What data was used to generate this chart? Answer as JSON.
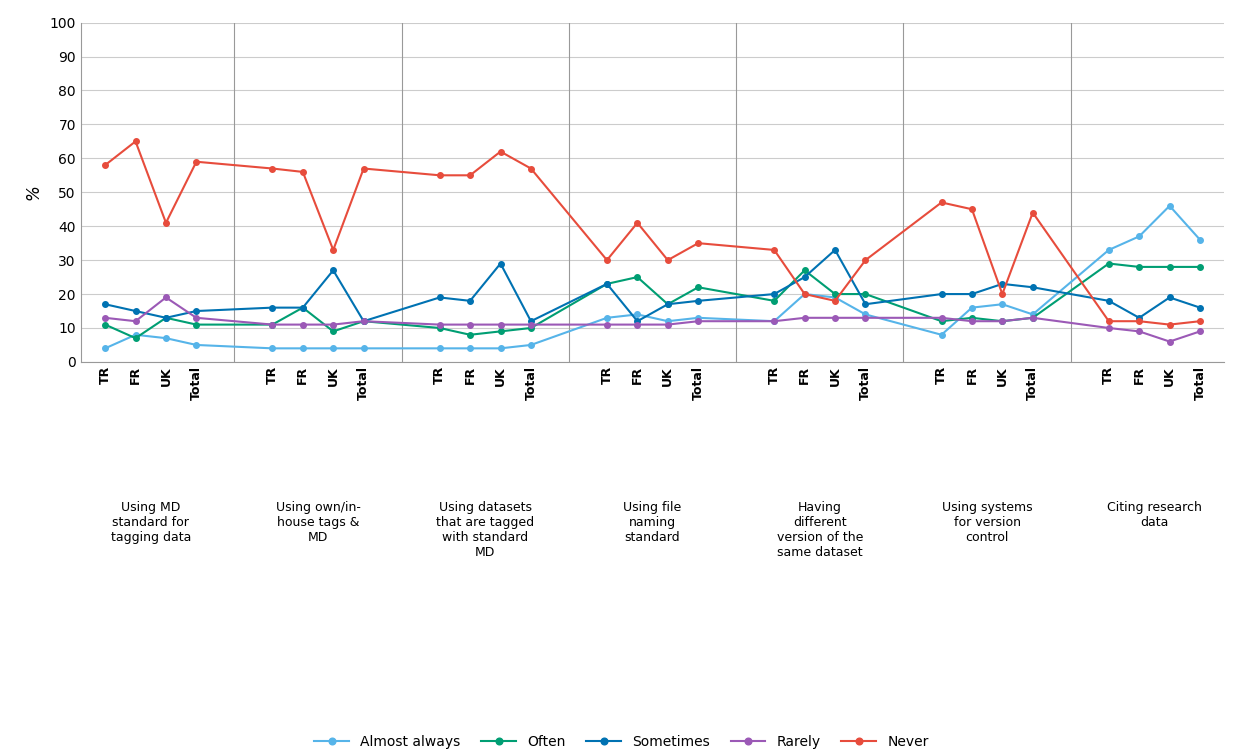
{
  "series_names": [
    "Almost always",
    "Often",
    "Sometimes",
    "Rarely",
    "Never"
  ],
  "series_colors": [
    "#56B4E9",
    "#009E73",
    "#0072B2",
    "#9B59B6",
    "#E74C3C"
  ],
  "group_labels": [
    "Using MD\nstandard for\ntagging data",
    "Using own/in-\nhouse tags &\nMD",
    "Using datasets\nthat are tagged\nwith standard\nMD",
    "Using file\nnaming\nstandard",
    "Having\ndifferent\nversion of the\nsame dataset",
    "Using systems\nfor version\ncontrol",
    "Citing research\ndata"
  ],
  "tick_labels_per_group": [
    "TR",
    "FR",
    "UK",
    "Total"
  ],
  "values": {
    "Almost always": [
      4,
      8,
      7,
      5,
      4,
      4,
      4,
      4,
      4,
      4,
      4,
      5,
      13,
      14,
      12,
      13,
      12,
      20,
      19,
      14,
      8,
      16,
      17,
      14,
      33,
      37,
      46,
      36
    ],
    "Often": [
      11,
      7,
      13,
      11,
      11,
      16,
      9,
      12,
      10,
      8,
      9,
      10,
      23,
      25,
      17,
      22,
      18,
      27,
      20,
      20,
      12,
      13,
      12,
      13,
      29,
      28,
      28,
      28
    ],
    "Sometimes": [
      17,
      15,
      13,
      15,
      16,
      16,
      27,
      12,
      19,
      18,
      29,
      12,
      23,
      12,
      17,
      18,
      20,
      25,
      33,
      17,
      20,
      20,
      23,
      22,
      18,
      13,
      19,
      16
    ],
    "Rarely": [
      13,
      12,
      19,
      13,
      11,
      11,
      11,
      12,
      11,
      11,
      11,
      11,
      11,
      11,
      11,
      12,
      12,
      13,
      13,
      13,
      13,
      12,
      12,
      13,
      10,
      9,
      6,
      9
    ],
    "Never": [
      58,
      65,
      41,
      59,
      57,
      56,
      33,
      57,
      55,
      55,
      62,
      57,
      30,
      41,
      30,
      35,
      33,
      20,
      18,
      30,
      47,
      45,
      20,
      44,
      12,
      12,
      11,
      12
    ]
  },
  "ylim": [
    0,
    100
  ],
  "yticks": [
    0,
    10,
    20,
    30,
    40,
    50,
    60,
    70,
    80,
    90,
    100
  ],
  "ylabel": "%",
  "background_color": "#ffffff",
  "grid_color": "#cccccc"
}
